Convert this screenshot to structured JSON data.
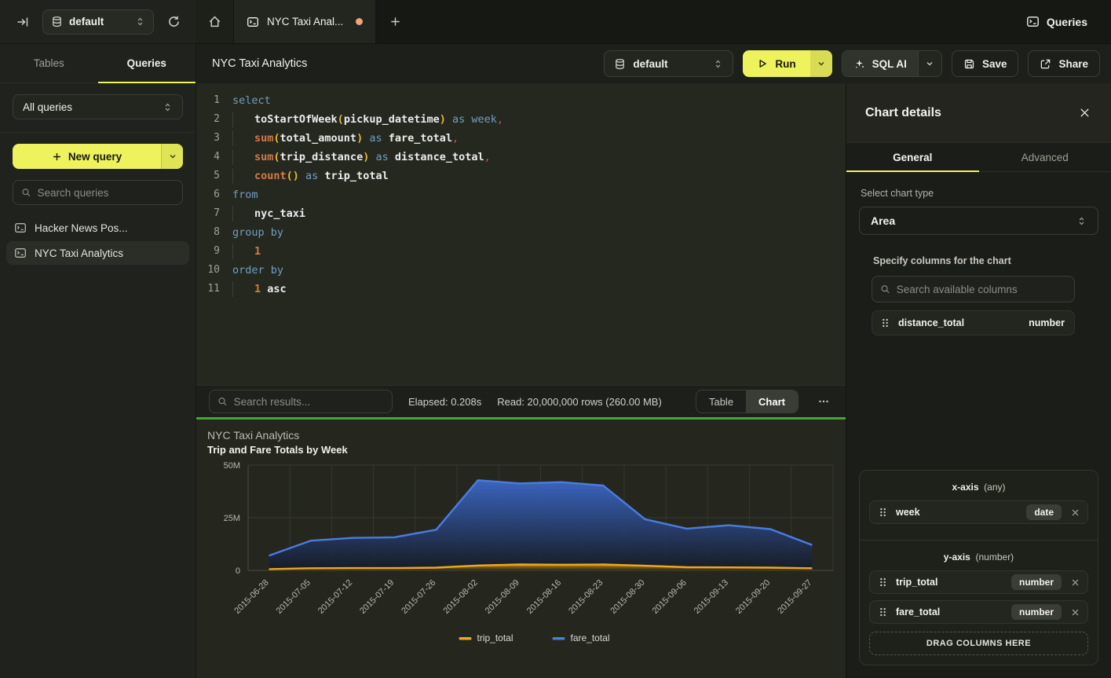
{
  "topbar": {
    "database_selector": "default",
    "active_tab": "NYC Taxi Anal...",
    "queries_button": "Queries"
  },
  "sidebar": {
    "tabs": [
      {
        "label": "Tables"
      },
      {
        "label": "Queries"
      }
    ],
    "filter_select": "All queries",
    "new_query_button": "New query",
    "search_placeholder": "Search queries",
    "queries": [
      {
        "label": "Hacker News Pos...",
        "selected": false
      },
      {
        "label": "NYC Taxi Analytics",
        "selected": true
      }
    ]
  },
  "header": {
    "title": "NYC Taxi Analytics",
    "database_selector": "default",
    "run_button": "Run",
    "sql_ai_button": "SQL AI",
    "save_button": "Save",
    "share_button": "Share"
  },
  "editor": {
    "lines": [
      {
        "indent": 0,
        "tokens": [
          [
            "select",
            "kw"
          ]
        ]
      },
      {
        "indent": 1,
        "tokens": [
          [
            "toStartOfWeek",
            "id"
          ],
          [
            "(",
            "paren"
          ],
          [
            "pickup_datetime",
            "id"
          ],
          [
            ")",
            "paren"
          ],
          [
            " as ",
            "kw"
          ],
          [
            "week",
            "kw"
          ],
          [
            ",",
            "comma"
          ]
        ]
      },
      {
        "indent": 1,
        "tokens": [
          [
            "sum",
            "fn"
          ],
          [
            "(",
            "paren"
          ],
          [
            "total_amount",
            "id"
          ],
          [
            ")",
            "paren"
          ],
          [
            " as ",
            "kw"
          ],
          [
            "fare_total",
            "id"
          ],
          [
            ",",
            "comma"
          ]
        ]
      },
      {
        "indent": 1,
        "tokens": [
          [
            "sum",
            "fn"
          ],
          [
            "(",
            "paren"
          ],
          [
            "trip_distance",
            "id"
          ],
          [
            ")",
            "paren"
          ],
          [
            " as ",
            "kw"
          ],
          [
            "distance_total",
            "id"
          ],
          [
            ",",
            "comma"
          ]
        ]
      },
      {
        "indent": 1,
        "tokens": [
          [
            "count",
            "fn"
          ],
          [
            "()",
            "paren"
          ],
          [
            " as ",
            "kw"
          ],
          [
            "trip_total",
            "id"
          ]
        ]
      },
      {
        "indent": 0,
        "tokens": [
          [
            "from",
            "kw"
          ]
        ]
      },
      {
        "indent": 1,
        "tokens": [
          [
            "nyc_taxi",
            "id"
          ]
        ]
      },
      {
        "indent": 0,
        "tokens": [
          [
            "group by",
            "kw"
          ]
        ]
      },
      {
        "indent": 1,
        "tokens": [
          [
            "1",
            "num"
          ]
        ]
      },
      {
        "indent": 0,
        "tokens": [
          [
            "order by",
            "kw"
          ]
        ]
      },
      {
        "indent": 1,
        "tokens": [
          [
            "1",
            "num"
          ],
          [
            " asc",
            "id"
          ]
        ]
      }
    ]
  },
  "results": {
    "search_placeholder": "Search results...",
    "elapsed": "Elapsed: 0.208s",
    "read": "Read: 20,000,000 rows (260.00 MB)",
    "view_toggle": [
      {
        "label": "Table"
      },
      {
        "label": "Chart"
      }
    ],
    "active_view": "Chart"
  },
  "chart_data": {
    "type": "area",
    "title": "NYC Taxi Analytics",
    "subtitle": "Trip and Fare Totals by Week",
    "x": [
      "2015-06-28",
      "2015-07-05",
      "2015-07-12",
      "2015-07-19",
      "2015-07-26",
      "2015-08-02",
      "2015-08-09",
      "2015-08-16",
      "2015-08-23",
      "2015-08-30",
      "2015-09-06",
      "2015-09-13",
      "2015-09-20",
      "2015-09-27"
    ],
    "series": [
      {
        "name": "trip_total",
        "color": "#efa81a",
        "values": [
          600000,
          1000000,
          1100000,
          1100000,
          1300000,
          2300000,
          2800000,
          2700000,
          2800000,
          2200000,
          1500000,
          1400000,
          1300000,
          1000000
        ]
      },
      {
        "name": "fare_total",
        "color": "#4a7ce0",
        "values": [
          7000000,
          14100000,
          15400000,
          15700000,
          19300000,
          42800000,
          41300000,
          41900000,
          40300000,
          24300000,
          19800000,
          21400000,
          19600000,
          12000000
        ]
      }
    ],
    "ylim": [
      0,
      50000000
    ],
    "yticks": [
      {
        "value": 0,
        "label": "0"
      },
      {
        "value": 25000000,
        "label": "25M"
      },
      {
        "value": 50000000,
        "label": "50M"
      }
    ],
    "grid": true,
    "legend_position": "bottom"
  },
  "chart_panel": {
    "title": "Chart details",
    "tabs": [
      {
        "label": "General"
      },
      {
        "label": "Advanced"
      }
    ],
    "chart_type_label": "Select chart type",
    "chart_type_value": "Area",
    "columns_label": "Specify columns for the chart",
    "columns_search_placeholder": "Search available columns",
    "available_columns": [
      {
        "name": "distance_total",
        "type": "number"
      }
    ],
    "x_axis": {
      "title": "x-axis",
      "hint": "(any)",
      "items": [
        {
          "name": "week",
          "type": "date"
        }
      ]
    },
    "y_axis": {
      "title": "y-axis",
      "hint": "(number)",
      "items": [
        {
          "name": "trip_total",
          "type": "number"
        },
        {
          "name": "fare_total",
          "type": "number"
        }
      ]
    },
    "drop_zone": "DRAG COLUMNS HERE"
  },
  "colors": {
    "accent_yellow": "#eef25c",
    "tab_dot_orange": "#efa579",
    "success_green": "#49a33d",
    "series_blue": "#4a7ce0",
    "series_yellow": "#efa81a"
  }
}
